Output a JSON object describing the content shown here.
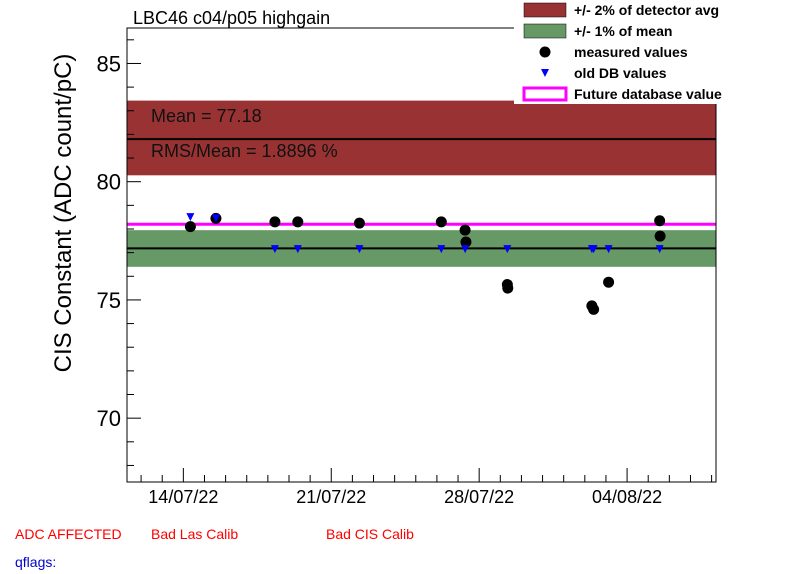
{
  "chart_data": {
    "type": "scatter",
    "title": "LBC46 c04/p05 highgain",
    "ylabel": "CIS Constant (ADC count/pC)",
    "xlabel": "",
    "ylim": [
      67.3,
      86.5
    ],
    "xlim": [
      "2022-07-11T08:00",
      "2022-08-08T05:00"
    ],
    "y_ticks": [
      "70",
      "75",
      "80",
      "85"
    ],
    "x_ticks": [
      {
        "date": "2022-07-14",
        "label": "14/07/22"
      },
      {
        "date": "2022-07-21",
        "label": "21/07/22"
      },
      {
        "date": "2022-07-28",
        "label": "28/07/22"
      },
      {
        "date": "2022-08-04",
        "label": "04/08/22"
      }
    ],
    "grid": false,
    "legend_position": "top-right",
    "detector_avg_line": 81.8,
    "band_2pct": [
      80.27,
      83.43
    ],
    "mean_line": 77.18,
    "band_1pct": [
      76.4,
      77.95
    ],
    "future_db_value": 78.2,
    "annotations": {
      "mean": "Mean = 77.18",
      "rms": "RMS/Mean = 1.8896 %"
    },
    "series": [
      {
        "name": "measured values",
        "marker": "circle",
        "color": "#000000",
        "points": [
          {
            "x": "2022-07-14T08:00",
            "y": 78.1
          },
          {
            "x": "2022-07-15T13:00",
            "y": 78.45
          },
          {
            "x": "2022-07-18T08:00",
            "y": 78.3
          },
          {
            "x": "2022-07-19T10:00",
            "y": 78.3
          },
          {
            "x": "2022-07-22T08:00",
            "y": 78.25
          },
          {
            "x": "2022-07-26T05:00",
            "y": 78.3
          },
          {
            "x": "2022-07-27T08:00",
            "y": 77.95
          },
          {
            "x": "2022-07-27T09:00",
            "y": 77.45
          },
          {
            "x": "2022-07-29T08:00",
            "y": 75.65
          },
          {
            "x": "2022-07-29T08:30",
            "y": 75.5
          },
          {
            "x": "2022-08-02T08:00",
            "y": 74.75
          },
          {
            "x": "2022-08-02T10:00",
            "y": 74.6
          },
          {
            "x": "2022-08-03T03:00",
            "y": 75.75
          },
          {
            "x": "2022-08-05T13:00",
            "y": 78.35
          },
          {
            "x": "2022-08-05T13:30",
            "y": 77.7
          }
        ]
      },
      {
        "name": "old DB values",
        "marker": "triangle-down",
        "color": "#0000ff",
        "points": [
          {
            "x": "2022-07-14T08:00",
            "y": 78.5
          },
          {
            "x": "2022-07-15T13:00",
            "y": 78.45
          },
          {
            "x": "2022-07-18T08:00",
            "y": 77.15
          },
          {
            "x": "2022-07-19T10:00",
            "y": 77.15
          },
          {
            "x": "2022-07-22T08:00",
            "y": 77.15
          },
          {
            "x": "2022-07-26T05:00",
            "y": 77.15
          },
          {
            "x": "2022-07-27T08:00",
            "y": 77.15
          },
          {
            "x": "2022-07-29T08:00",
            "y": 77.15
          },
          {
            "x": "2022-08-02T08:00",
            "y": 77.15
          },
          {
            "x": "2022-08-02T10:00",
            "y": 77.15
          },
          {
            "x": "2022-08-03T03:00",
            "y": 77.15
          },
          {
            "x": "2022-08-05T13:00",
            "y": 77.15
          }
        ]
      }
    ],
    "legend": [
      {
        "label": "+/- 2% of detector avg",
        "swatch": "box",
        "color": "#993333"
      },
      {
        "label": "+/- 1% of mean",
        "swatch": "box",
        "color": "#669966"
      },
      {
        "label": "measured values",
        "swatch": "circle",
        "color": "#000000"
      },
      {
        "label": "old DB values",
        "swatch": "triangle-down",
        "color": "#0000ff"
      },
      {
        "label": "Future database value",
        "swatch": "line-box",
        "color": "#ff00ff"
      }
    ],
    "colors": {
      "band_2pct": "#993333",
      "band_1pct": "#669966",
      "future_line": "#ff00ff",
      "mean_line": "#000000",
      "status_red": "#ff0000",
      "qflags_blue": "#0000cc"
    }
  },
  "footer": {
    "status_1": "ADC AFFECTED",
    "status_2": "Bad Las Calib",
    "status_3": "Bad CIS Calib",
    "qflags": "qflags:"
  }
}
